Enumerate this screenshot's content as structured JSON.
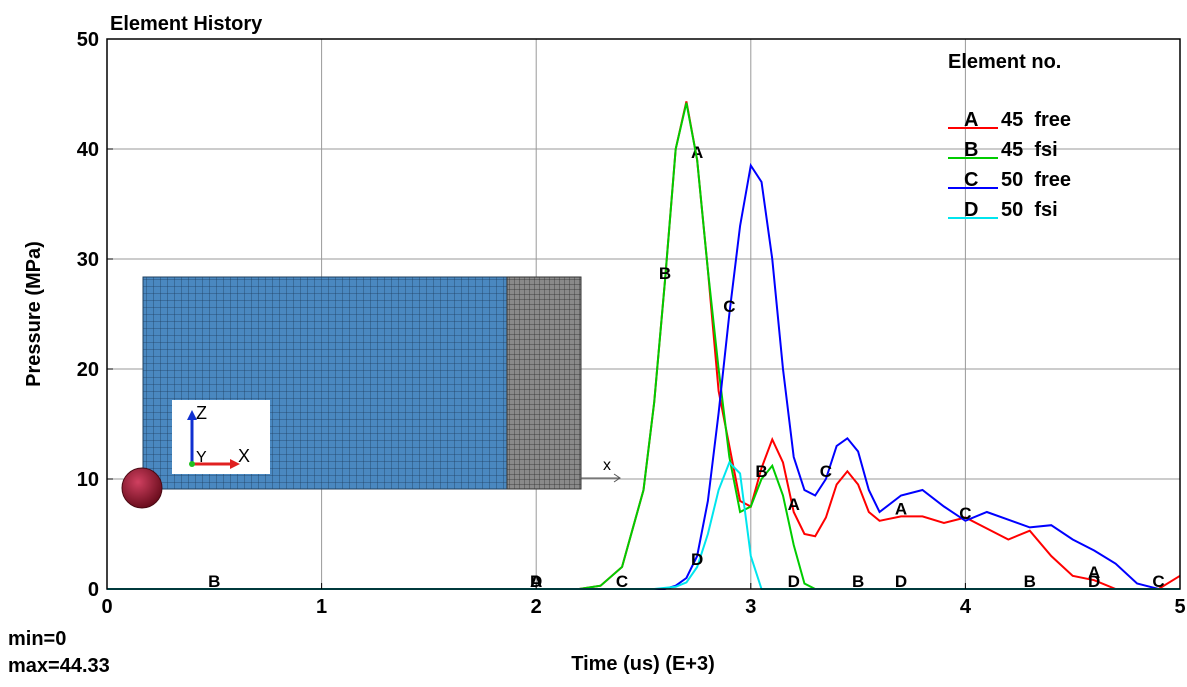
{
  "chart_data": {
    "type": "line",
    "title": "Element History",
    "xlabel": "Time (us) (E+3)",
    "ylabel": "Pressure (MPa)",
    "legend_title": "Element no.",
    "legend": "upper right",
    "grid": true,
    "annotations": [
      "min=0",
      "max=44.33"
    ],
    "inset_labels": [
      "Z",
      "Y",
      "X",
      "x"
    ],
    "xlim": [
      0,
      5
    ],
    "ylim": [
      0,
      50
    ],
    "xticks": [
      0,
      1,
      2,
      3,
      4,
      5
    ],
    "yticks": [
      0,
      10,
      20,
      30,
      40,
      50
    ],
    "x": [
      0,
      0.5,
      1,
      1.5,
      2,
      2.2,
      2.3,
      2.4,
      2.5,
      2.55,
      2.6,
      2.65,
      2.7,
      2.75,
      2.8,
      2.85,
      2.9,
      2.95,
      3.0,
      3.05,
      3.1,
      3.15,
      3.2,
      3.25,
      3.3,
      3.35,
      3.4,
      3.45,
      3.5,
      3.55,
      3.6,
      3.7,
      3.8,
      3.9,
      4.0,
      4.1,
      4.2,
      4.3,
      4.4,
      4.5,
      4.6,
      4.7,
      4.8,
      4.9,
      5.0
    ],
    "series": [
      {
        "marker": "A",
        "name": "45  free",
        "color": "#ff0000",
        "values": [
          0,
          0,
          0,
          0,
          0,
          0,
          0.3,
          2,
          9,
          17,
          28,
          40,
          44.33,
          39,
          29,
          18,
          13,
          8,
          7.5,
          11,
          13.6,
          11.5,
          7,
          5,
          4.8,
          6.5,
          9.5,
          10.7,
          9.5,
          7,
          6.2,
          6.6,
          6.6,
          6,
          6.5,
          5.5,
          4.5,
          5.3,
          3,
          1.2,
          0.8,
          0,
          0,
          0,
          1.2
        ]
      },
      {
        "marker": "B",
        "name": "45  fsi",
        "color": "#00cc00",
        "values": [
          0,
          0,
          0,
          0,
          0,
          0,
          0.3,
          2,
          9,
          17,
          28,
          40,
          44.2,
          39,
          29,
          20,
          12,
          7,
          7.5,
          10,
          11.2,
          8.5,
          4,
          0.5,
          0,
          0,
          0,
          0,
          0,
          0,
          0,
          0,
          0,
          0,
          0,
          0,
          0,
          0,
          0,
          0,
          0,
          0,
          0,
          0,
          0
        ]
      },
      {
        "marker": "C",
        "name": "50  free",
        "color": "#0000ff",
        "values": [
          0,
          0,
          0,
          0,
          0,
          0,
          0,
          0,
          0,
          0,
          0,
          0.3,
          1,
          3,
          8,
          16,
          25,
          33,
          38.5,
          37,
          30,
          20,
          12,
          9,
          8.5,
          10,
          13,
          13.7,
          12.5,
          9,
          7,
          8.5,
          9,
          7.5,
          6.2,
          7,
          6.3,
          5.6,
          5.8,
          4.5,
          3.5,
          2.3,
          0.5,
          0,
          0
        ]
      },
      {
        "marker": "D",
        "name": "50  fsi",
        "color": "#00e5ee",
        "values": [
          0,
          0,
          0,
          0,
          0,
          0,
          0,
          0,
          0,
          0,
          0.1,
          0.2,
          0.6,
          2,
          5,
          9,
          11.5,
          10.5,
          3,
          0,
          0,
          0,
          0,
          0,
          0,
          0,
          0,
          0,
          0,
          0,
          0,
          0,
          0,
          0,
          0,
          0,
          0,
          0,
          0,
          0,
          0,
          0,
          0,
          0,
          0
        ]
      }
    ]
  }
}
